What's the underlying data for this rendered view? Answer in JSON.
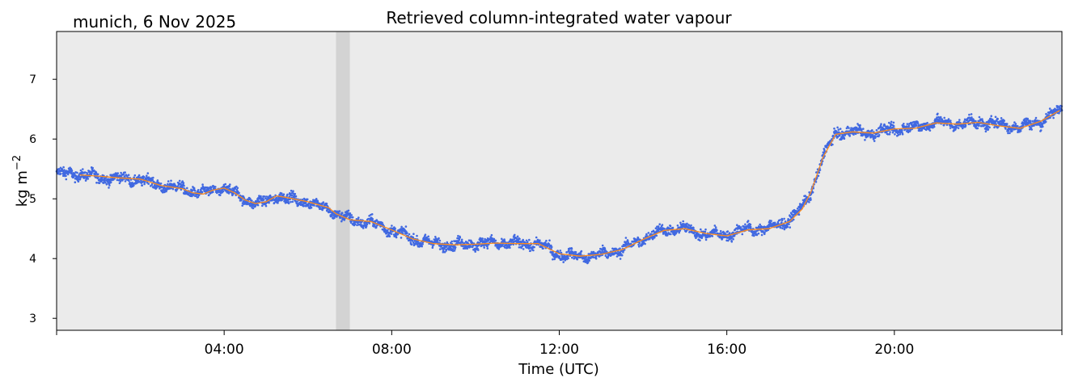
{
  "header": {
    "site_date": "munich, 6 Nov 2025",
    "title": "Retrieved column-integrated water vapour"
  },
  "colors": {
    "plot_background": "#ebebeb",
    "raw_points": "#4169e1",
    "smoothed_line": "#ff8c1a",
    "gap_band": "#d3d3d3"
  },
  "chart_data": {
    "type": "scatter",
    "title": "Retrieved column-integrated water vapour",
    "xlabel": "Time (UTC)",
    "ylabel_main": "kg m",
    "ylabel_exp": "−2",
    "x_unit": "hours UTC",
    "xlim": [
      0,
      24
    ],
    "ylim": [
      2.8,
      7.8
    ],
    "x_ticks": [
      {
        "value": 4,
        "label": "04:00"
      },
      {
        "value": 8,
        "label": "08:00"
      },
      {
        "value": 12,
        "label": "12:00"
      },
      {
        "value": 16,
        "label": "16:00"
      },
      {
        "value": 20,
        "label": "20:00"
      }
    ],
    "y_ticks": [
      {
        "value": 3,
        "label": "3"
      },
      {
        "value": 4,
        "label": "4"
      },
      {
        "value": 5,
        "label": "5"
      },
      {
        "value": 6,
        "label": "6"
      },
      {
        "value": 7,
        "label": "7"
      }
    ],
    "gap_band": {
      "start": 6.67,
      "end": 7.0
    },
    "series": [
      {
        "kind": "raw_scatter",
        "spread": 0.08,
        "x": [
          0.0,
          0.5,
          1.0,
          1.5,
          2.0,
          2.5,
          3.0,
          3.5,
          3.75,
          4.0,
          4.5,
          4.75,
          5.0,
          5.25,
          5.5,
          6.0,
          6.5,
          6.67,
          7.0,
          7.5,
          8.0,
          8.5,
          9.0,
          9.5,
          10.0,
          10.5,
          11.0,
          11.5,
          12.0,
          12.5,
          13.0,
          13.5,
          14.0,
          14.5,
          15.0,
          15.5,
          16.0,
          16.5,
          17.0,
          17.5,
          17.8,
          18.0,
          18.3,
          18.6,
          19.0,
          19.5,
          20.0,
          20.5,
          21.0,
          21.5,
          22.0,
          22.5,
          23.0,
          23.5,
          24.0
        ],
        "y": [
          5.42,
          5.42,
          5.36,
          5.34,
          5.32,
          5.22,
          5.17,
          5.08,
          5.15,
          5.18,
          5.0,
          4.92,
          4.95,
          5.05,
          5.0,
          4.95,
          4.83,
          4.75,
          4.65,
          4.6,
          4.48,
          4.33,
          4.25,
          4.23,
          4.25,
          4.26,
          4.25,
          4.25,
          4.07,
          4.03,
          4.07,
          4.15,
          4.33,
          4.48,
          4.5,
          4.4,
          4.4,
          4.5,
          4.5,
          4.65,
          4.85,
          5.1,
          5.7,
          6.1,
          6.12,
          6.1,
          6.17,
          6.2,
          6.28,
          6.25,
          6.28,
          6.25,
          6.2,
          6.3,
          6.5
        ]
      },
      {
        "kind": "smoothed_line",
        "x": [
          0.55,
          1.0,
          1.5,
          2.0,
          2.5,
          3.0,
          3.25,
          3.5,
          3.75,
          4.0,
          4.25,
          4.5,
          4.75,
          5.0,
          5.25,
          5.5,
          6.0,
          6.5,
          6.67,
          7.0,
          7.5,
          8.0,
          8.5,
          9.0,
          9.5,
          10.0,
          10.5,
          11.0,
          11.5,
          12.0,
          12.5,
          13.0,
          13.5,
          14.0,
          14.5,
          15.0,
          15.5,
          16.0,
          16.5,
          17.0,
          17.5,
          17.8,
          18.0,
          18.3,
          18.6,
          19.0,
          19.5,
          20.0,
          20.5,
          21.0,
          21.5,
          22.0,
          22.5,
          23.0,
          23.5,
          23.95
        ],
        "y": [
          5.4,
          5.38,
          5.35,
          5.33,
          5.22,
          5.17,
          5.1,
          5.08,
          5.15,
          5.18,
          5.1,
          4.98,
          4.92,
          4.95,
          5.05,
          5.02,
          4.95,
          4.85,
          4.75,
          4.65,
          4.62,
          4.48,
          4.33,
          4.25,
          4.23,
          4.24,
          4.26,
          4.25,
          4.25,
          4.08,
          4.04,
          4.07,
          4.15,
          4.32,
          4.47,
          4.5,
          4.42,
          4.38,
          4.48,
          4.5,
          4.62,
          4.83,
          5.1,
          5.7,
          6.08,
          6.12,
          6.1,
          6.17,
          6.18,
          6.27,
          6.25,
          6.28,
          6.22,
          6.18,
          6.3,
          6.48
        ]
      }
    ]
  }
}
